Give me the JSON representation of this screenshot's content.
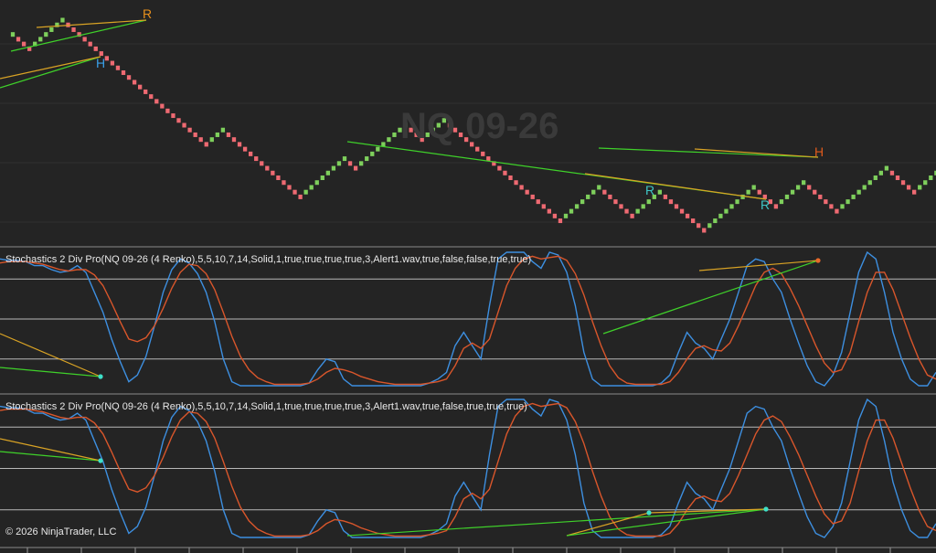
{
  "watermark": "NQ 09-26",
  "copyright": "© 2026 NinjaTrader, LLC",
  "colors": {
    "background": "#242424",
    "up_brick": "#7ecf5c",
    "down_brick": "#ee6a72",
    "fast_line": "#3d8fe0",
    "slow_line": "#d9562b",
    "bull_div": "#3fd12a",
    "bear_div": "#d9a324",
    "marker_cyan": "#3ee0c8",
    "marker_orange": "#e86a2a",
    "label_blue": "#3aa0e8",
    "label_orange": "#e8901c",
    "label_orange_red": "#e05a1c",
    "label_cyan": "#3ec6c6"
  },
  "panels": [
    {
      "title": "Stochastics 2 Div Pro(NQ 09-26 (4 Renko),5,5,10,7,14,Solid,1,true,true,true,true,3,Alert1.wav,true,false,false,true,true)"
    },
    {
      "title": "Stochastics 2 Div Pro(NQ 09-26 (4 Renko),5,5,10,7,14,Solid,1,true,true,true,true,3,Alert1.wav,true,false,true,true,true)"
    }
  ],
  "chart_data": [
    {
      "type": "renko",
      "series": [
        {
          "name": "",
          "legs": [
            [
              1,
              8
            ],
            [
              -3,
              1
            ],
            [
              6,
              11
            ],
            [
              -26,
              1
            ],
            [
              3,
              1
            ],
            [
              -14,
              1
            ],
            [
              8,
              1
            ],
            [
              -2,
              1
            ],
            [
              9,
              1
            ],
            [
              -3,
              1
            ],
            [
              4,
              1
            ],
            [
              -21,
              1
            ],
            [
              7,
              1
            ],
            [
              -6,
              1
            ],
            [
              5,
              1
            ],
            [
              -8,
              1
            ],
            [
              9,
              1
            ],
            [
              -4,
              1
            ],
            [
              5,
              1
            ],
            [
              -6,
              1
            ],
            [
              9,
              1
            ],
            [
              -5,
              1
            ],
            [
              7,
              1
            ],
            [
              -14,
              1
            ],
            [
              3,
              1
            ]
          ]
        }
      ],
      "labels": [
        {
          "text": "R",
          "color": "label_orange",
          "at_brick": 20
        },
        {
          "text": "H",
          "color": "label_blue",
          "at_brick": 11
        },
        {
          "text": "R",
          "color": "label_cyan",
          "at_brick": 118
        },
        {
          "text": "R",
          "color": "label_cyan",
          "at_brick": 142
        },
        {
          "text": "H",
          "color": "label_orange_red",
          "at_brick": 150
        }
      ]
    },
    {
      "type": "line",
      "ylim": [
        0,
        100
      ],
      "levels": [
        20,
        50,
        80
      ],
      "series": [
        {
          "name": "",
          "color": "fast_line",
          "values": [
            95,
            94,
            94,
            93,
            90,
            90,
            87,
            85,
            86,
            90,
            85,
            70,
            55,
            35,
            18,
            3,
            8,
            22,
            45,
            70,
            87,
            95,
            92,
            84,
            70,
            48,
            20,
            3,
            0,
            0,
            0,
            0,
            0,
            0,
            0,
            0,
            2,
            12,
            20,
            18,
            5,
            0,
            0,
            0,
            0,
            0,
            0,
            0,
            0,
            0,
            2,
            5,
            10,
            30,
            40,
            30,
            20,
            60,
            95,
            100,
            100,
            100,
            93,
            88,
            100,
            98,
            85,
            60,
            25,
            5,
            0,
            0,
            0,
            0,
            0,
            0,
            0,
            2,
            8,
            25,
            40,
            32,
            28,
            20,
            35,
            50,
            70,
            90,
            95,
            93,
            80,
            70,
            50,
            32,
            15,
            3,
            0,
            8,
            25,
            55,
            85,
            100,
            95,
            70,
            40,
            20,
            5,
            0,
            0,
            10
          ]
        },
        {
          "name": "",
          "color": "slow_line",
          "values": [
            92,
            93,
            93,
            93,
            92,
            91,
            89,
            87,
            86,
            87,
            87,
            83,
            75,
            62,
            48,
            35,
            33,
            36,
            45,
            58,
            73,
            85,
            91,
            90,
            84,
            72,
            55,
            37,
            22,
            12,
            6,
            3,
            1,
            1,
            1,
            1,
            2,
            5,
            10,
            13,
            12,
            10,
            7,
            5,
            3,
            2,
            1,
            1,
            1,
            1,
            2,
            3,
            5,
            15,
            28,
            32,
            28,
            35,
            55,
            75,
            88,
            95,
            97,
            95,
            96,
            97,
            94,
            84,
            68,
            48,
            30,
            15,
            6,
            2,
            1,
            1,
            1,
            1,
            3,
            10,
            20,
            28,
            30,
            27,
            26,
            32,
            45,
            60,
            75,
            85,
            88,
            84,
            73,
            60,
            45,
            30,
            17,
            10,
            12,
            25,
            48,
            70,
            85,
            85,
            72,
            54,
            36,
            20,
            8,
            5
          ]
        }
      ]
    },
    {
      "type": "line",
      "ylim": [
        0,
        100
      ],
      "levels": [
        20,
        50,
        80
      ],
      "series": [
        {
          "name": "",
          "color": "fast_line",
          "values": [
            95,
            94,
            94,
            93,
            90,
            90,
            87,
            85,
            86,
            90,
            85,
            70,
            55,
            35,
            18,
            3,
            8,
            22,
            45,
            70,
            87,
            95,
            92,
            84,
            70,
            48,
            20,
            3,
            0,
            0,
            0,
            0,
            0,
            0,
            0,
            0,
            2,
            12,
            20,
            18,
            5,
            0,
            0,
            0,
            0,
            0,
            0,
            0,
            0,
            0,
            2,
            5,
            10,
            30,
            40,
            30,
            20,
            60,
            95,
            100,
            100,
            100,
            93,
            88,
            100,
            98,
            85,
            60,
            25,
            5,
            0,
            0,
            0,
            0,
            0,
            0,
            0,
            2,
            8,
            25,
            40,
            32,
            28,
            20,
            35,
            50,
            70,
            90,
            95,
            93,
            80,
            70,
            50,
            32,
            15,
            3,
            0,
            8,
            25,
            55,
            85,
            100,
            95,
            70,
            40,
            20,
            5,
            0,
            0,
            10
          ]
        },
        {
          "name": "",
          "color": "slow_line",
          "values": [
            92,
            93,
            93,
            93,
            92,
            91,
            89,
            87,
            86,
            87,
            87,
            83,
            75,
            62,
            48,
            35,
            33,
            36,
            45,
            58,
            73,
            85,
            91,
            90,
            84,
            72,
            55,
            37,
            22,
            12,
            6,
            3,
            1,
            1,
            1,
            1,
            2,
            5,
            10,
            13,
            12,
            10,
            7,
            5,
            3,
            2,
            1,
            1,
            1,
            1,
            2,
            3,
            5,
            15,
            28,
            32,
            28,
            35,
            55,
            75,
            88,
            95,
            97,
            95,
            96,
            97,
            94,
            84,
            68,
            48,
            30,
            15,
            6,
            2,
            1,
            1,
            1,
            1,
            3,
            10,
            20,
            28,
            30,
            27,
            26,
            32,
            45,
            60,
            75,
            85,
            88,
            84,
            73,
            60,
            45,
            30,
            17,
            10,
            12,
            25,
            48,
            70,
            85,
            85,
            72,
            54,
            36,
            20,
            8,
            5
          ]
        }
      ]
    }
  ]
}
